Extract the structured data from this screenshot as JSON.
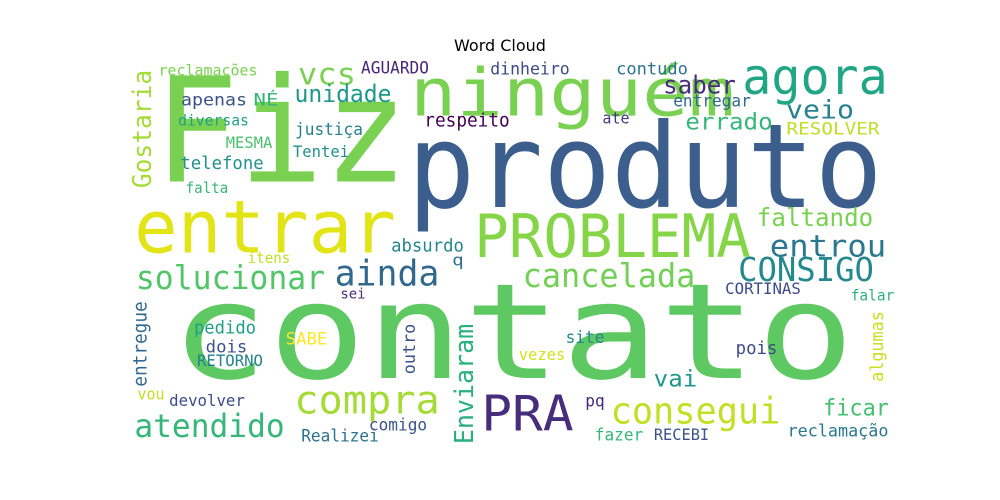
{
  "chart_data": {
    "type": "wordcloud",
    "title": "Word Cloud",
    "colormap": "viridis",
    "words": [
      {
        "text": "contato",
        "color": "#5ec962",
        "vertical": false
      },
      {
        "text": "produto",
        "color": "#3b5e8c",
        "vertical": false
      },
      {
        "text": "Fiz",
        "color": "#7ad151",
        "vertical": false
      },
      {
        "text": "entrar",
        "color": "#e3e418",
        "vertical": false
      },
      {
        "text": "ninguém",
        "color": "#7ad151",
        "vertical": false
      },
      {
        "text": "agora",
        "color": "#21a685",
        "vertical": false
      },
      {
        "text": "PROBLEMA",
        "color": "#86d549",
        "vertical": false
      },
      {
        "text": "PRA",
        "color": "#472d7b",
        "vertical": false
      },
      {
        "text": "compra",
        "color": "#a5db36",
        "vertical": false
      },
      {
        "text": "consegui",
        "color": "#c2df23",
        "vertical": false
      },
      {
        "text": "atendido",
        "color": "#35b779",
        "vertical": false
      },
      {
        "text": "solucionar",
        "color": "#52c569",
        "vertical": false
      },
      {
        "text": "ainda",
        "color": "#31688e",
        "vertical": false
      },
      {
        "text": "cancelada",
        "color": "#73d056",
        "vertical": false
      },
      {
        "text": "CONSIGO",
        "color": "#23898e",
        "vertical": false
      },
      {
        "text": "entrou",
        "color": "#2a778e",
        "vertical": false
      },
      {
        "text": "faltando",
        "color": "#7ad151",
        "vertical": false
      },
      {
        "text": "vcs",
        "color": "#7ad151",
        "vertical": false
      },
      {
        "text": "unidade",
        "color": "#1f988b",
        "vertical": false
      },
      {
        "text": "saber",
        "color": "#472d7b",
        "vertical": false
      },
      {
        "text": "veio",
        "color": "#26828e",
        "vertical": false
      },
      {
        "text": "errado",
        "color": "#35b779",
        "vertical": false
      },
      {
        "text": "Gostaria",
        "color": "#a5db36",
        "vertical": true
      },
      {
        "text": "Enviaram",
        "color": "#2ab07f",
        "vertical": true
      },
      {
        "text": "vai",
        "color": "#1f988b",
        "vertical": false
      },
      {
        "text": "ficar",
        "color": "#44bf70",
        "vertical": false
      },
      {
        "text": "reclamações",
        "color": "#7ad151",
        "vertical": false
      },
      {
        "text": "AGUARDO",
        "color": "#482576",
        "vertical": false
      },
      {
        "text": "dinheiro",
        "color": "#3e4a89",
        "vertical": false
      },
      {
        "text": "contudo",
        "color": "#2c728e",
        "vertical": false
      },
      {
        "text": "apenas",
        "color": "#3b528b",
        "vertical": false
      },
      {
        "text": "NÉ",
        "color": "#35b779",
        "vertical": false
      },
      {
        "text": "entregar",
        "color": "#31688e",
        "vertical": false
      },
      {
        "text": "diversas",
        "color": "#1fa187",
        "vertical": false
      },
      {
        "text": "justiça",
        "color": "#277f8e",
        "vertical": false
      },
      {
        "text": "respeito",
        "color": "#440154",
        "vertical": false
      },
      {
        "text": "ate",
        "color": "#443983",
        "vertical": false
      },
      {
        "text": "RESOLVER",
        "color": "#bddf26",
        "vertical": false
      },
      {
        "text": "MESMA",
        "color": "#4ac16d",
        "vertical": false
      },
      {
        "text": "Tentei",
        "color": "#21918c",
        "vertical": false
      },
      {
        "text": "telefone",
        "color": "#21918c",
        "vertical": false
      },
      {
        "text": "falta",
        "color": "#35b779",
        "vertical": false
      },
      {
        "text": "absurdo",
        "color": "#25858e",
        "vertical": false
      },
      {
        "text": "itens",
        "color": "#c2df23",
        "vertical": false
      },
      {
        "text": "q",
        "color": "#2d708e",
        "vertical": false
      },
      {
        "text": "sei",
        "color": "#472d7b",
        "vertical": false
      },
      {
        "text": "CORTINAS",
        "color": "#3e4a89",
        "vertical": false
      },
      {
        "text": "falar",
        "color": "#2db27d",
        "vertical": false
      },
      {
        "text": "entregue",
        "color": "#31688e",
        "vertical": true
      },
      {
        "text": "pedido",
        "color": "#1f9e89",
        "vertical": false
      },
      {
        "text": "dois",
        "color": "#3b528b",
        "vertical": false
      },
      {
        "text": "RETORNO",
        "color": "#26828e",
        "vertical": false
      },
      {
        "text": "SABE",
        "color": "#fde725",
        "vertical": false
      },
      {
        "text": "outro",
        "color": "#3b528b",
        "vertical": true
      },
      {
        "text": "site",
        "color": "#25858e",
        "vertical": false
      },
      {
        "text": "vezes",
        "color": "#d2e21b",
        "vertical": false
      },
      {
        "text": "pois",
        "color": "#3e4a89",
        "vertical": false
      },
      {
        "text": "algumas",
        "color": "#c8e020",
        "vertical": true
      },
      {
        "text": "vou",
        "color": "#c2df23",
        "vertical": false
      },
      {
        "text": "devolver",
        "color": "#3e4a89",
        "vertical": false
      },
      {
        "text": "pq",
        "color": "#482878",
        "vertical": false
      },
      {
        "text": "comigo",
        "color": "#3b528b",
        "vertical": false
      },
      {
        "text": "Realizei",
        "color": "#2c728e",
        "vertical": false
      },
      {
        "text": "fazer",
        "color": "#35b779",
        "vertical": false
      },
      {
        "text": "RECEBI",
        "color": "#3b528b",
        "vertical": false
      },
      {
        "text": "reclamação",
        "color": "#2a788e",
        "vertical": false
      }
    ]
  }
}
